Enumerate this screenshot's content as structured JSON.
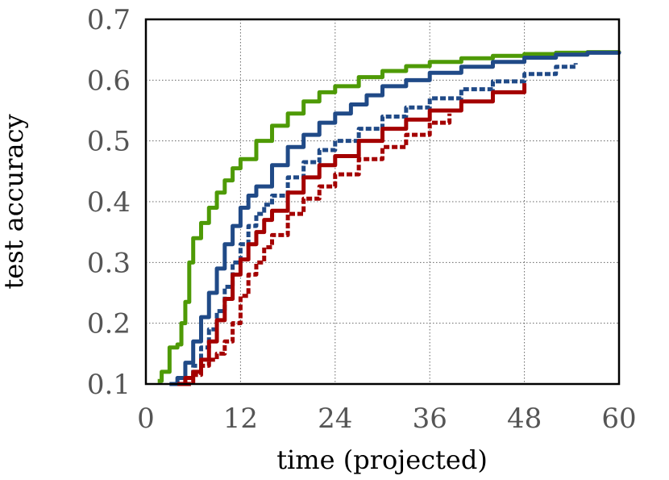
{
  "chart_data": {
    "type": "line",
    "xlabel": "time (projected)",
    "ylabel": "test accuracy",
    "xlim": [
      0,
      60
    ],
    "ylim": [
      0.1,
      0.7
    ],
    "xticks": [
      "0",
      "12",
      "24",
      "36",
      "48",
      "60"
    ],
    "yticks": [
      "0.1",
      "0.2",
      "0.3",
      "0.4",
      "0.5",
      "0.6",
      "0.7"
    ],
    "grid": true,
    "series": [
      {
        "color": "#4e9a06",
        "style": "solid",
        "x": [
          1.5,
          2,
          3,
          4,
          4.5,
          5,
          5.5,
          6,
          7,
          8,
          9,
          10,
          11,
          12,
          14,
          16,
          18,
          20,
          22,
          24,
          27,
          30,
          33,
          36,
          40,
          44,
          48,
          52,
          56,
          60
        ],
        "y": [
          0.105,
          0.12,
          0.16,
          0.165,
          0.2,
          0.235,
          0.3,
          0.34,
          0.365,
          0.39,
          0.415,
          0.435,
          0.455,
          0.47,
          0.5,
          0.525,
          0.545,
          0.565,
          0.58,
          0.59,
          0.605,
          0.615,
          0.623,
          0.63,
          0.636,
          0.64,
          0.643,
          0.645,
          0.646,
          0.645
        ]
      },
      {
        "color": "#204a87",
        "style": "solid",
        "x": [
          3,
          4,
          5,
          6,
          7,
          8,
          9,
          10,
          11,
          12,
          13,
          14,
          16,
          18,
          20,
          22,
          24,
          26,
          28,
          30,
          33,
          36,
          40,
          44,
          48,
          52,
          56,
          60
        ],
        "y": [
          0.1,
          0.11,
          0.135,
          0.17,
          0.21,
          0.25,
          0.29,
          0.33,
          0.36,
          0.39,
          0.41,
          0.425,
          0.46,
          0.49,
          0.51,
          0.53,
          0.545,
          0.56,
          0.575,
          0.59,
          0.6,
          0.612,
          0.622,
          0.63,
          0.637,
          0.642,
          0.645,
          0.647
        ]
      },
      {
        "color": "#204a87",
        "style": "dashed",
        "x": [
          4,
          5,
          6,
          7,
          8,
          9,
          10,
          11,
          12,
          13,
          14,
          15,
          16,
          18,
          20,
          22,
          24,
          27,
          30,
          33,
          36,
          40,
          44,
          48,
          52,
          54.5
        ],
        "y": [
          0.1,
          0.11,
          0.13,
          0.16,
          0.19,
          0.22,
          0.26,
          0.3,
          0.33,
          0.36,
          0.38,
          0.395,
          0.41,
          0.44,
          0.465,
          0.485,
          0.5,
          0.52,
          0.54,
          0.555,
          0.57,
          0.585,
          0.598,
          0.61,
          0.622,
          0.628
        ]
      },
      {
        "color": "#a40000",
        "style": "solid",
        "x": [
          4,
          5,
          6,
          7,
          8,
          9,
          10,
          11,
          12,
          13,
          14,
          15,
          16,
          18,
          20,
          22,
          24,
          27,
          30,
          33,
          36,
          40,
          44,
          48
        ],
        "y": [
          0.1,
          0.11,
          0.12,
          0.14,
          0.17,
          0.205,
          0.24,
          0.28,
          0.305,
          0.33,
          0.35,
          0.37,
          0.385,
          0.415,
          0.44,
          0.46,
          0.475,
          0.5,
          0.52,
          0.535,
          0.55,
          0.565,
          0.58,
          0.595
        ]
      },
      {
        "color": "#a40000",
        "style": "dashed",
        "x": [
          5,
          6,
          7,
          8,
          9,
          10,
          11,
          12,
          13,
          14,
          15,
          16,
          18,
          20,
          22,
          24,
          27,
          30,
          33,
          36,
          38.5
        ],
        "y": [
          0.1,
          0.115,
          0.13,
          0.14,
          0.15,
          0.17,
          0.2,
          0.245,
          0.28,
          0.3,
          0.325,
          0.345,
          0.38,
          0.405,
          0.425,
          0.445,
          0.47,
          0.49,
          0.51,
          0.53,
          0.545
        ]
      }
    ]
  }
}
